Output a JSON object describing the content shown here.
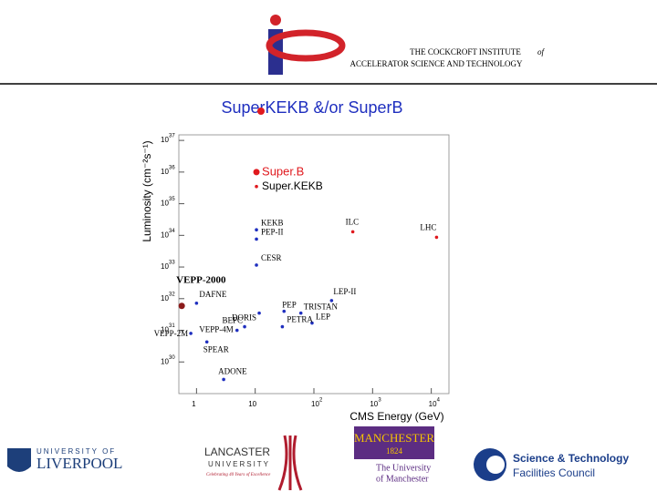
{
  "header": {
    "institute_line1": "THE COCKCROFT INSTITUTE",
    "institute_of": "of",
    "institute_line2": "ACCELERATOR SCIENCE AND TECHNOLOGY"
  },
  "chart_data": {
    "type": "scatter",
    "title": "SuperKEKB &/or SuperB",
    "x_label": "CMS Energy (GeV)",
    "y_label": "Luminosity (cm⁻²s⁻¹)",
    "log_x": true,
    "log_y": true,
    "xlim": [
      0.5,
      20000
    ],
    "ylim": [
      1e+29,
      1.5e+37
    ],
    "xticks": [
      1,
      10,
      {
        "value": 100,
        "label": "10",
        "exponent": "2"
      },
      {
        "value": 1000,
        "label": "10",
        "exponent": "3"
      },
      {
        "value": 10000,
        "label": "10",
        "exponent": "4"
      }
    ],
    "yticks": [
      {
        "value": 1e+30,
        "label": "10",
        "exponent": "30"
      },
      {
        "value": 1e+31,
        "label": "10",
        "exponent": "31"
      },
      {
        "value": 1e+32,
        "label": "10",
        "exponent": "32"
      },
      {
        "value": 1e+33,
        "label": "10",
        "exponent": "33"
      },
      {
        "value": 1e+34,
        "label": "10",
        "exponent": "34"
      },
      {
        "value": 1e+35,
        "label": "10",
        "exponent": "35"
      },
      {
        "value": 1e+36,
        "label": "10",
        "exponent": "36"
      },
      {
        "value": 1e+37,
        "label": "10",
        "exponent": "37"
      }
    ],
    "series": [
      {
        "name": "Super.B",
        "color": "#e0191e",
        "x": [
          10.5
        ],
        "values": [
          1e+36
        ]
      },
      {
        "name": "Super.KEKB",
        "color": "#e0191e",
        "x": [
          10.5
        ],
        "values": [
          3.5e+35
        ]
      },
      {
        "x": [
          10.5,
          10.5,
          10.5,
          460,
          12300,
          0.56,
          1.0,
          200,
          31,
          60,
          11.7,
          93,
          6.6,
          4.9,
          29,
          0.8,
          1.5,
          2.9
        ],
        "values": [
          1.5e+34,
          7.6e+33,
          1.15e+33,
          1.3e+34,
          8.7e+33,
          5.9e+31,
          7.2e+31,
          8.7e+31,
          4e+31,
          3.5e+31,
          3.5e+31,
          1.7e+31,
          1.3e+31,
          1e+31,
          1.3e+31,
          8e+30,
          4.3e+30,
          2.8e+29
        ],
        "point_labels": [
          "KEKB",
          "PEP-II",
          "CESR",
          "ILC",
          "LHC",
          "VEPP-2000",
          "DAFNE",
          "LEP-II",
          "PEP",
          "TRISTAN",
          "DORIS",
          "LEP",
          "BEPC",
          "VEPP-4M",
          "PETRA",
          "VEPP-2M",
          "SPEAR",
          "ADONE"
        ],
        "colors": [
          "#1f2fbf",
          "#1f2fbf",
          "#1f2fbf",
          "#e0191e",
          "#e0191e",
          "#8b1a1a",
          "#1f2fbf",
          "#1f2fbf",
          "#1f2fbf",
          "#1f2fbf",
          "#1f2fbf",
          "#1f2fbf",
          "#1f2fbf",
          "#1f2fbf",
          "#1f2fbf",
          "#1f2fbf",
          "#1f2fbf",
          "#1f2fbf"
        ]
      }
    ]
  },
  "footer": {
    "liverpool": [
      "UNIVERSITY OF",
      "LIVERPOOL"
    ],
    "lancaster": [
      "LANCASTER",
      "UNIVERSITY",
      "Celebrating 40 Years of Excellence"
    ],
    "manchester": [
      "MANCHESTER",
      "1824",
      "The University",
      "of Manchester"
    ],
    "stfc": [
      "Science & Technology",
      "Facilities Council"
    ]
  }
}
